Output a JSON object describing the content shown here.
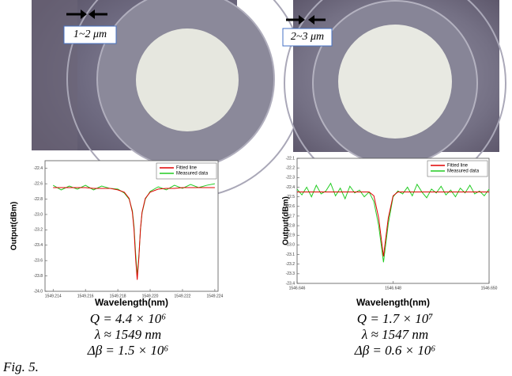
{
  "images": [
    {
      "scale_label": "1~2 μm"
    },
    {
      "scale_label": "2~3 μm"
    }
  ],
  "chart_data": [
    {
      "type": "line",
      "x": [
        1549.214,
        1549.2145,
        1549.215,
        1549.2155,
        1549.216,
        1549.2165,
        1549.217,
        1549.2175,
        1549.218,
        1549.2184,
        1549.2187,
        1549.2189,
        1549.219,
        1549.2191,
        1549.2192,
        1549.2193,
        1549.2194,
        1549.2195,
        1549.2197,
        1549.22,
        1549.2205,
        1549.221,
        1549.2215,
        1549.222,
        1549.2225,
        1549.223,
        1549.2235,
        1549.224
      ],
      "series": [
        {
          "name": "Fitted line",
          "color": "#e00000",
          "values": [
            -22.65,
            -22.65,
            -22.65,
            -22.65,
            -22.65,
            -22.66,
            -22.66,
            -22.66,
            -22.68,
            -22.71,
            -22.79,
            -22.97,
            -23.19,
            -23.57,
            -23.85,
            -23.57,
            -23.19,
            -22.97,
            -22.79,
            -22.71,
            -22.67,
            -22.66,
            -22.66,
            -22.65,
            -22.65,
            -22.65,
            -22.65,
            -22.65
          ]
        },
        {
          "name": "Measured data",
          "color": "#22cc22",
          "values": [
            -22.62,
            -22.68,
            -22.63,
            -22.67,
            -22.62,
            -22.68,
            -22.63,
            -22.66,
            -22.67,
            -22.72,
            -22.8,
            -22.95,
            -23.15,
            -23.5,
            -23.8,
            -23.55,
            -23.2,
            -22.98,
            -22.8,
            -22.7,
            -22.64,
            -22.68,
            -22.62,
            -22.66,
            -22.61,
            -22.65,
            -22.62,
            -22.6
          ]
        }
      ],
      "xlim": [
        1549.2135,
        1549.2242
      ],
      "ylim": [
        -24.0,
        -22.3
      ],
      "xticks": [
        1549.214,
        1549.216,
        1549.218,
        {
          "value": 1549.22,
          "label": "1549.220"
        },
        1549.222,
        1549.224
      ],
      "yticks": [
        -22.4,
        -22.6,
        -22.8,
        {
          "value": -23,
          "label": "-23.0"
        },
        -23.2,
        -23.4,
        -23.6,
        -23.8,
        {
          "value": -24,
          "label": "-24.0"
        }
      ],
      "xlabel": "Wavelength(nm)",
      "ylabel": "Output(dBm)",
      "legend": "upper right"
    },
    {
      "type": "line",
      "x": [
        1546.646,
        1546.6461,
        1546.6462,
        1546.6463,
        1546.6464,
        1546.6465,
        1546.6466,
        1546.6467,
        1546.6468,
        1546.6469,
        1546.647,
        1546.6471,
        1546.6472,
        1546.6473,
        1546.6474,
        1546.6475,
        1546.6476,
        1546.6477,
        1546.6478,
        1546.6479,
        1546.648,
        1546.6481,
        1546.6482,
        1546.6483,
        1546.6484,
        1546.6485,
        1546.6486,
        1546.6487,
        1546.6488,
        1546.6489,
        1546.649,
        1546.6491,
        1546.6492,
        1546.6493,
        1546.6494,
        1546.6495,
        1546.6496,
        1546.6497,
        1546.6498,
        1546.6499,
        1546.65
      ],
      "series": [
        {
          "name": "Fitted line",
          "color": "#e00000",
          "values": [
            -22.45,
            -22.45,
            -22.45,
            -22.45,
            -22.45,
            -22.45,
            -22.45,
            -22.45,
            -22.45,
            -22.45,
            -22.45,
            -22.45,
            -22.45,
            -22.45,
            -22.45,
            -22.45,
            -22.49,
            -22.72,
            -23.12,
            -22.72,
            -22.49,
            -22.45,
            -22.45,
            -22.45,
            -22.45,
            -22.45,
            -22.45,
            -22.45,
            -22.45,
            -22.45,
            -22.45,
            -22.45,
            -22.45,
            -22.45,
            -22.45,
            -22.45,
            -22.45,
            -22.45,
            -22.45,
            -22.45,
            -22.45
          ]
        },
        {
          "name": "Measured data",
          "color": "#22cc22",
          "values": [
            -22.42,
            -22.48,
            -22.4,
            -22.5,
            -22.38,
            -22.47,
            -22.44,
            -22.36,
            -22.49,
            -22.41,
            -22.52,
            -22.39,
            -22.46,
            -22.43,
            -22.5,
            -22.45,
            -22.55,
            -22.8,
            -23.18,
            -22.78,
            -22.5,
            -22.44,
            -22.47,
            -22.4,
            -22.49,
            -22.37,
            -22.45,
            -22.51,
            -22.42,
            -22.46,
            -22.39,
            -22.48,
            -22.43,
            -22.5,
            -22.41,
            -22.46,
            -22.38,
            -22.47,
            -22.44,
            -22.49,
            -22.42
          ]
        }
      ],
      "xlim": [
        1546.646,
        1546.65
      ],
      "ylim": [
        -23.4,
        -22.1
      ],
      "xticks": [
        1546.646,
        1546.648,
        {
          "value": 1546.65,
          "label": "1546.650"
        }
      ],
      "yticks": [
        -22.1,
        -22.2,
        -22.3,
        -22.4,
        -22.5,
        -22.6,
        -22.7,
        -22.8,
        -22.9,
        {
          "value": -23,
          "label": "-23.0"
        },
        -23.1,
        -23.2,
        -23.3,
        -23.4
      ],
      "xlabel": "Wavelength(nm)",
      "ylabel": "Output(dBm)",
      "legend": "upper right"
    }
  ],
  "captions": [
    [
      "Q = 4.4 × 10⁶",
      "λ ≈ 1549 nm",
      "Δβ = 1.5 × 10⁶"
    ],
    [
      "Q = 1.7 × 10⁷",
      "λ ≈ 1547 nm",
      "Δβ = 0.6 × 10⁶"
    ]
  ],
  "figure_caption": "Fig. 5."
}
